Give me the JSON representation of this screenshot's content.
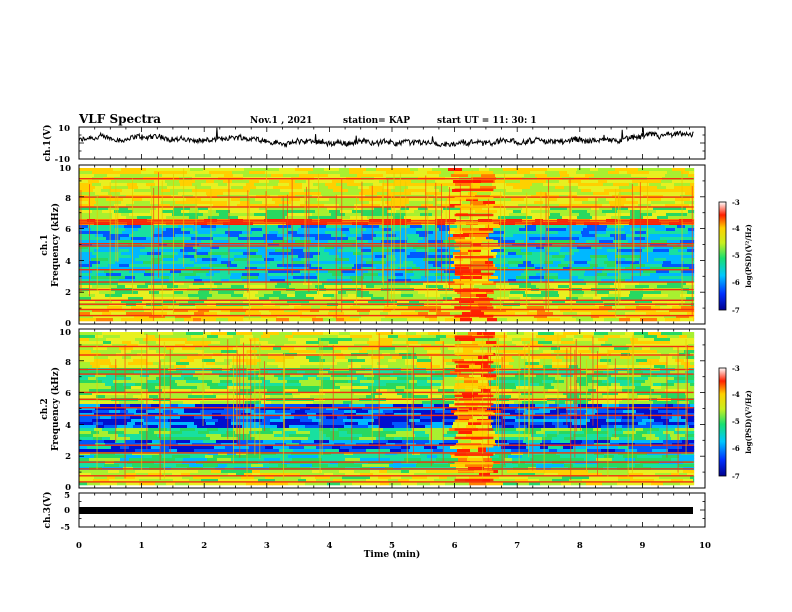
{
  "header": {
    "title": "VLF Spectra",
    "date": "Nov.1  , 2021",
    "station": "station= KAP",
    "start": "start  UT  =   11: 30: 1"
  },
  "chart_data": [
    {
      "type": "line",
      "name": "ch1-waveform",
      "ylabel": "ch.1(V)",
      "ylim": [
        -10,
        10
      ],
      "yticks": [
        "10",
        "-10"
      ],
      "xlim": [
        0,
        10
      ],
      "x_extent": [
        0,
        9.82
      ],
      "level_mean": 1.5,
      "level_range": [
        -5,
        8
      ],
      "color": "#000000"
    },
    {
      "type": "heatmap",
      "name": "ch1-spectrogram",
      "ylabel_top": "ch.1",
      "ylabel": "Frequency  (kHz)",
      "ylim": [
        0,
        10
      ],
      "yticks": [
        "0",
        "2",
        "4",
        "6",
        "8",
        "10"
      ],
      "xlim": [
        0,
        10
      ],
      "x_extent": [
        0,
        9.82
      ],
      "disturbance_interval_min": [
        6.0,
        6.62
      ],
      "colorbar": {
        "label": "log(PSD)(V²/Hz)",
        "range": [
          -7,
          -3
        ],
        "ticks": [
          "-3",
          "-4",
          "-5",
          "-6",
          "-7"
        ]
      }
    },
    {
      "type": "heatmap",
      "name": "ch2-spectrogram",
      "ylabel_top": "ch.2",
      "ylabel": "Frequency  (kHz)",
      "ylim": [
        0,
        10
      ],
      "yticks": [
        "0",
        "2",
        "4",
        "6",
        "8",
        "10"
      ],
      "xlim": [
        0,
        10
      ],
      "x_extent": [
        0,
        9.82
      ],
      "disturbance_interval_min": [
        6.0,
        6.62
      ],
      "colorbar": {
        "label": "log(PSD)(V²/Hz)",
        "range": [
          -7,
          -3
        ],
        "ticks": [
          "-3",
          "-4",
          "-5",
          "-6",
          "-7"
        ]
      }
    },
    {
      "type": "line",
      "name": "ch3-waveform",
      "ylabel": "ch.3(V)",
      "ylim": [
        -5,
        5
      ],
      "yticks": [
        "5",
        "0",
        "-5"
      ],
      "xlim": [
        0,
        10
      ],
      "x_extent": [
        0,
        9.82
      ],
      "level": 0,
      "xlabel": "Time  (min)",
      "xticks": [
        "0",
        "1",
        "2",
        "3",
        "4",
        "5",
        "6",
        "7",
        "8",
        "9",
        "10"
      ],
      "color": "#000000"
    }
  ]
}
